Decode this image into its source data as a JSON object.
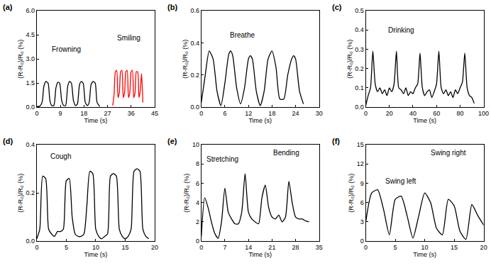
{
  "chart_data": [
    {
      "type": "line",
      "title": "(a)",
      "x_label": "Time (s)",
      "y_label": "(R-R₀)/R₀ (%)",
      "annotations": [
        "Frowning",
        "Smiling"
      ],
      "xlim": [
        0,
        45
      ],
      "xticks": [
        0,
        9,
        18,
        27,
        36,
        45
      ],
      "ylim": [
        0,
        6
      ],
      "yticks": [
        {
          "value": 0,
          "label": "0.0"
        },
        {
          "value": 1.5,
          "label": "1.5"
        },
        {
          "value": 3,
          "label": "3.0"
        },
        {
          "value": 4.5,
          "label": "4.5"
        },
        {
          "value": 6,
          "label": "6.0"
        }
      ],
      "grid": false,
      "legend": false,
      "series": [
        {
          "color": "#000000",
          "x": [
            0,
            1,
            2,
            2.7,
            3.5,
            4.3,
            5,
            5.7,
            6.5,
            7.3,
            8,
            8.7,
            9.5,
            10.3,
            11,
            11.8,
            12.5,
            13.2,
            14,
            14.8,
            15.5,
            16.3,
            17,
            17.7,
            18.5,
            19.3,
            20,
            20.7,
            21.5,
            22.3,
            23,
            24
          ],
          "values": [
            0.05,
            0.05,
            0.3,
            1.3,
            1.6,
            1.5,
            0.4,
            0.1,
            0.1,
            1.2,
            1.55,
            1.5,
            0.4,
            0.1,
            0.1,
            1.3,
            1.6,
            1.5,
            0.4,
            0.1,
            0.2,
            1.4,
            1.6,
            1.5,
            0.3,
            0.1,
            0.3,
            1.4,
            1.6,
            1.5,
            0.3,
            0.05
          ]
        },
        {
          "color": "#ff0000",
          "x": [
            29,
            29.5,
            30,
            30.5,
            31,
            31.5,
            32,
            32.5,
            33,
            33.5,
            34,
            34.5,
            35,
            35.5,
            36,
            36.5,
            37,
            37.5,
            38,
            38.5,
            39,
            39.5,
            40,
            40.5
          ],
          "values": [
            0.1,
            0.8,
            2.2,
            2.3,
            0.6,
            0.9,
            2.2,
            2.3,
            0.6,
            0.9,
            2.2,
            2.3,
            0.6,
            0.9,
            2.2,
            2.3,
            0.6,
            0.9,
            2.2,
            2.2,
            0.6,
            1.0,
            2.1,
            0.3
          ]
        }
      ]
    },
    {
      "type": "line",
      "title": "(b)",
      "x_label": "Time (s)",
      "y_label": "(R-R₀)/R₀ (%)",
      "annotations": [
        "Breathe"
      ],
      "xlim": [
        0,
        30
      ],
      "xticks": [
        0,
        6,
        12,
        18,
        24,
        30
      ],
      "ylim": [
        0,
        0.6
      ],
      "yticks": [
        {
          "value": 0,
          "label": "0.0"
        },
        0.2,
        0.4,
        0.6
      ],
      "grid": false,
      "legend": false,
      "series": [
        {
          "color": "#000000",
          "x": [
            0,
            1,
            2,
            3,
            4,
            5,
            6,
            7,
            7.5,
            8,
            9,
            10,
            11,
            12,
            12.5,
            13,
            14,
            15,
            16,
            17,
            18,
            19,
            20,
            21,
            22,
            23,
            23.5,
            24,
            25,
            26
          ],
          "values": [
            0.03,
            0.2,
            0.35,
            0.3,
            0.1,
            0.01,
            0.15,
            0.33,
            0.35,
            0.32,
            0.12,
            0.02,
            0.12,
            0.3,
            0.32,
            0.3,
            0.1,
            0.01,
            0.1,
            0.3,
            0.35,
            0.25,
            0.05,
            0.05,
            0.2,
            0.3,
            0.32,
            0.3,
            0.1,
            0.02
          ]
        }
      ]
    },
    {
      "type": "line",
      "title": "(c)",
      "x_label": "Time (s)",
      "y_label": "(R-R₀)/R₀ (%)",
      "annotations": [
        "Drinking"
      ],
      "xlim": [
        0,
        100
      ],
      "xticks": [
        0,
        20,
        40,
        60,
        80,
        100
      ],
      "ylim": [
        0,
        0.5
      ],
      "yticks": [
        {
          "value": 0,
          "label": "0.0"
        },
        0.1,
        0.2,
        0.3,
        0.4,
        0.5
      ],
      "grid": false,
      "legend": false,
      "series": [
        {
          "color": "#000000",
          "x": [
            0,
            2,
            4,
            6,
            8,
            10,
            12,
            14,
            16,
            18,
            20,
            22,
            24,
            26,
            28,
            30,
            32,
            34,
            36,
            38,
            40,
            42,
            44,
            46,
            48,
            50,
            52,
            54,
            56,
            58,
            60,
            62,
            64,
            66,
            68,
            70,
            72,
            74,
            76,
            78,
            80,
            82,
            84,
            86,
            88,
            90,
            92
          ],
          "values": [
            0.01,
            0.06,
            0.1,
            0.29,
            0.12,
            0.08,
            0.1,
            0.07,
            0.09,
            0.06,
            0.1,
            0.08,
            0.12,
            0.29,
            0.1,
            0.09,
            0.07,
            0.1,
            0.06,
            0.08,
            0.07,
            0.1,
            0.12,
            0.28,
            0.1,
            0.06,
            0.08,
            0.09,
            0.05,
            0.08,
            0.12,
            0.29,
            0.1,
            0.07,
            0.09,
            0.06,
            0.08,
            0.05,
            0.09,
            0.07,
            0.1,
            0.13,
            0.28,
            0.1,
            0.06,
            0.05,
            0.02
          ]
        }
      ]
    },
    {
      "type": "line",
      "title": "(d)",
      "x_label": "Time (s)",
      "y_label": "(R-R₀)/R₀ (%)",
      "annotations": [
        "Cough"
      ],
      "xlim": [
        0,
        20
      ],
      "xticks": [
        0,
        5,
        10,
        15,
        20
      ],
      "ylim": [
        0,
        0.4
      ],
      "yticks": [
        {
          "value": 0,
          "label": "0.0"
        },
        0.2,
        0.4
      ],
      "grid": false,
      "legend": false,
      "series": [
        {
          "color": "#000000",
          "x": [
            0,
            0.5,
            1,
            1.5,
            2,
            2.5,
            3,
            3.5,
            4,
            4.5,
            5,
            5.5,
            6,
            6.5,
            7,
            7.5,
            8,
            8.5,
            9,
            9.5,
            10,
            10.5,
            11,
            11.5,
            12,
            12.5,
            13,
            13.5,
            14,
            14.5,
            15,
            15.5,
            16,
            16.5,
            17,
            17.5,
            18,
            18.5,
            19
          ],
          "values": [
            0.01,
            0.05,
            0.27,
            0.26,
            0.05,
            0.03,
            0.02,
            0.04,
            0.04,
            0.05,
            0.25,
            0.26,
            0.1,
            0.03,
            0.02,
            0.02,
            0.03,
            0.15,
            0.29,
            0.28,
            0.05,
            0.02,
            0.01,
            0.02,
            0.03,
            0.27,
            0.28,
            0.27,
            0.05,
            0.02,
            0.01,
            0.02,
            0.05,
            0.29,
            0.3,
            0.29,
            0.05,
            0.02,
            0.01
          ]
        }
      ]
    },
    {
      "type": "line",
      "title": "(e)",
      "x_label": "Time (s)",
      "y_label": "(R-R₀)/R₀ (%)",
      "annotations": [
        "Stretching",
        "Bending"
      ],
      "xlim": [
        0,
        35
      ],
      "xticks": [
        0,
        7,
        14,
        21,
        28,
        35
      ],
      "ylim": [
        0,
        10
      ],
      "yticks": [
        0,
        2,
        4,
        6,
        8,
        10
      ],
      "grid": false,
      "legend": false,
      "series": [
        {
          "color": "#000000",
          "x": [
            0,
            1,
            2,
            3,
            4,
            5,
            6,
            7,
            8,
            9,
            10,
            11,
            12,
            13,
            14,
            15,
            16,
            17,
            18,
            19,
            20,
            21,
            22,
            23,
            24,
            25,
            26,
            27,
            28,
            29,
            30,
            31,
            32
          ],
          "values": [
            0.5,
            4.5,
            3.5,
            2,
            0.8,
            0.3,
            2,
            5.5,
            3,
            2.3,
            1.8,
            1.8,
            3,
            7,
            3,
            2.3,
            2,
            1.8,
            4.5,
            5.8,
            3.5,
            2.5,
            2.3,
            2.7,
            2,
            2.5,
            6.2,
            4,
            2.5,
            2.3,
            2.3,
            2.1,
            2
          ]
        }
      ]
    },
    {
      "type": "line",
      "title": "(f)",
      "x_label": "Time (s)",
      "y_label": "(R-R₀)/R₀ (%)",
      "annotations": [
        "Swing left",
        "Swing right"
      ],
      "xlim": [
        0,
        20
      ],
      "xticks": [
        0,
        5,
        10,
        15,
        20
      ],
      "ylim": [
        0,
        15
      ],
      "yticks": [
        0,
        3,
        6,
        9,
        12,
        15
      ],
      "grid": false,
      "legend": false,
      "series": [
        {
          "color": "#000000",
          "x": [
            0,
            1,
            2,
            3,
            4,
            5,
            6,
            7,
            8,
            9,
            10,
            11,
            12,
            13,
            14,
            15,
            16,
            17,
            18,
            19,
            20
          ],
          "values": [
            3,
            7.5,
            8,
            5,
            1,
            6.5,
            7,
            4,
            0.5,
            4,
            7.5,
            6,
            2,
            1,
            6.5,
            5.5,
            1.5,
            0.3,
            5.7,
            4,
            2.5
          ]
        }
      ]
    }
  ]
}
